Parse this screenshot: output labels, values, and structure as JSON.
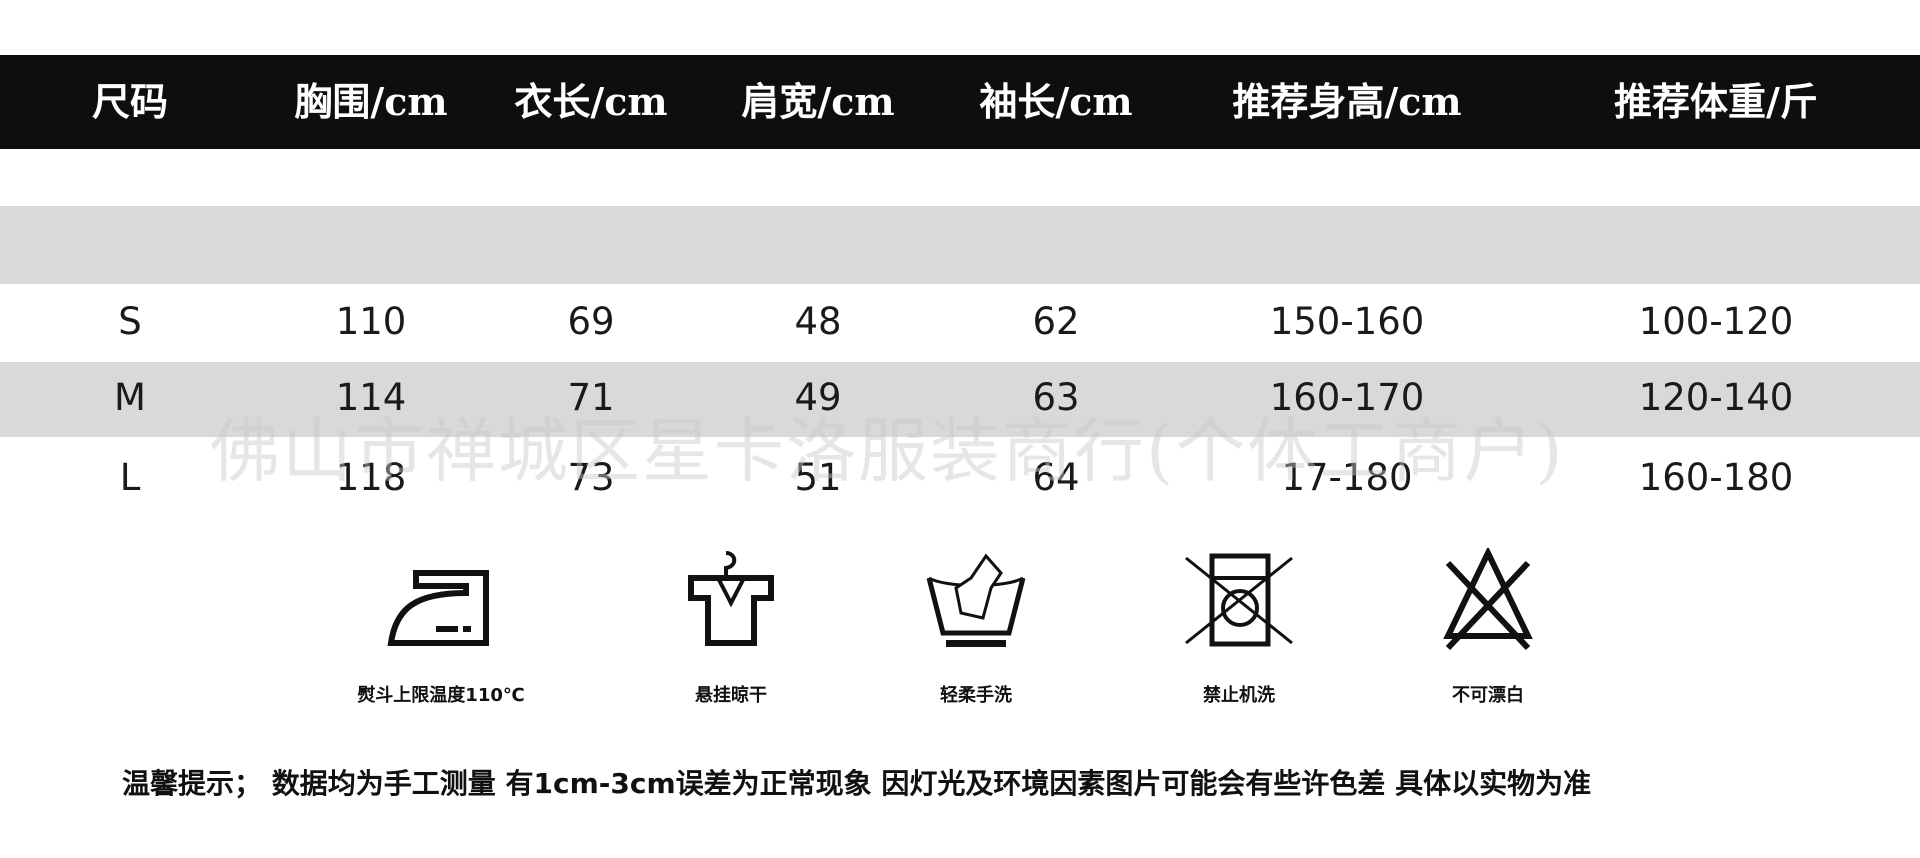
{
  "headers": [
    "尺码",
    "胸围/cm",
    "衣长/cm",
    "肩宽/cm",
    "袖长/cm",
    "推荐身高/cm",
    "推荐体重/斤"
  ],
  "rows": [
    [
      "S",
      "110",
      "69",
      "48",
      "62",
      "150-160",
      "100-120"
    ],
    [
      "M",
      "114",
      "71",
      "49",
      "63",
      "160-170",
      "120-140"
    ],
    [
      "L",
      "118",
      "73",
      "51",
      "64",
      "17-180",
      "160-180"
    ]
  ],
  "care": [
    {
      "icon": "iron-icon",
      "label": "熨斗上限温度110℃"
    },
    {
      "icon": "hang-dry-icon",
      "label": "悬挂晾干"
    },
    {
      "icon": "hand-wash-icon",
      "label": "轻柔手洗"
    },
    {
      "icon": "no-machine-wash-icon",
      "label": "禁止机洗"
    },
    {
      "icon": "no-bleach-icon",
      "label": "不可漂白"
    }
  ],
  "note": "温馨提示；  数据均为手工测量  有1cm-3cm误差为正常现象 因灯光及环境因素图片可能会有些许色差 具体以实物为准",
  "watermark": "佛山市禅城区星卡洛服装商行(个体工商户)",
  "colors": {
    "header_bg": "#0e0e0e",
    "band": "#d9d9d9"
  }
}
